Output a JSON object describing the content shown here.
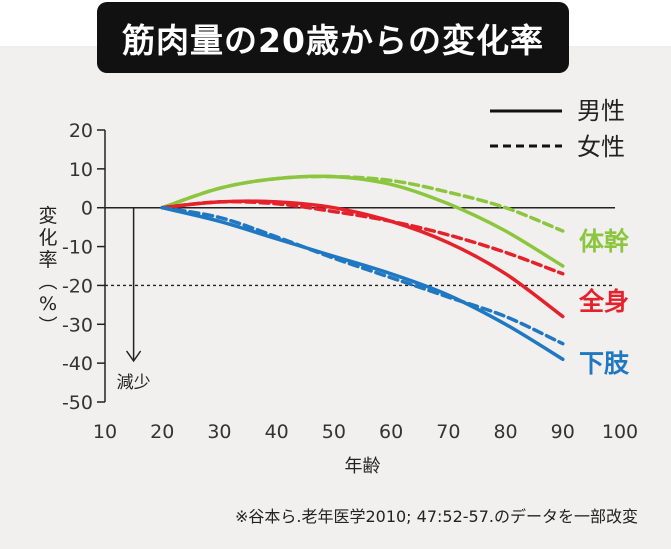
{
  "title": "筋肉量の20歳からの変化率",
  "chart_data": {
    "type": "line",
    "xlabel": "年齢",
    "ylabel": "変化率（%）",
    "xlim": [
      10,
      100
    ],
    "ylim": [
      -50,
      20
    ],
    "xticks": [
      10,
      20,
      30,
      40,
      50,
      60,
      70,
      80,
      90,
      100
    ],
    "yticks": [
      20,
      10,
      0,
      -10,
      -20,
      -30,
      -40,
      -50
    ],
    "reference_line": -20,
    "annotation": {
      "text": "減少",
      "x": 15
    },
    "legend": [
      {
        "label": "男性",
        "style": "solid"
      },
      {
        "label": "女性",
        "style": "dashed"
      }
    ],
    "groups": [
      {
        "label": "体幹",
        "color": "#8cc63f",
        "series": [
          {
            "sex": "男性",
            "x": [
              20,
              30,
              40,
              50,
              60,
              70,
              80,
              90
            ],
            "y": [
              0,
              5,
              7.5,
              8,
              6,
              1,
              -6,
              -15
            ]
          },
          {
            "sex": "女性",
            "x": [
              20,
              30,
              40,
              50,
              60,
              70,
              80,
              90
            ],
            "y": [
              0,
              5,
              7.5,
              8,
              7,
              4,
              0,
              -6
            ]
          }
        ]
      },
      {
        "label": "全身",
        "color": "#e5222b",
        "series": [
          {
            "sex": "男性",
            "x": [
              20,
              30,
              40,
              50,
              60,
              70,
              80,
              90
            ],
            "y": [
              0,
              1.5,
              1.5,
              0,
              -3.5,
              -9,
              -17,
              -28
            ]
          },
          {
            "sex": "女性",
            "x": [
              20,
              30,
              40,
              50,
              60,
              70,
              80,
              90
            ],
            "y": [
              0,
              1.5,
              1,
              -1,
              -3.5,
              -7,
              -11.5,
              -17
            ]
          }
        ]
      },
      {
        "label": "下肢",
        "color": "#1f78c1",
        "series": [
          {
            "sex": "男性",
            "x": [
              20,
              30,
              40,
              50,
              60,
              70,
              80,
              90
            ],
            "y": [
              0,
              -3.5,
              -8,
              -12.5,
              -17,
              -22.5,
              -30,
              -39
            ]
          },
          {
            "sex": "女性",
            "x": [
              20,
              30,
              40,
              50,
              60,
              70,
              80,
              90
            ],
            "y": [
              0,
              -2.5,
              -7.5,
              -13,
              -18,
              -23,
              -28,
              -35
            ]
          }
        ]
      }
    ]
  },
  "note": "※谷本ら.老年医学2010; 47:52-57.のデータを一部改変"
}
